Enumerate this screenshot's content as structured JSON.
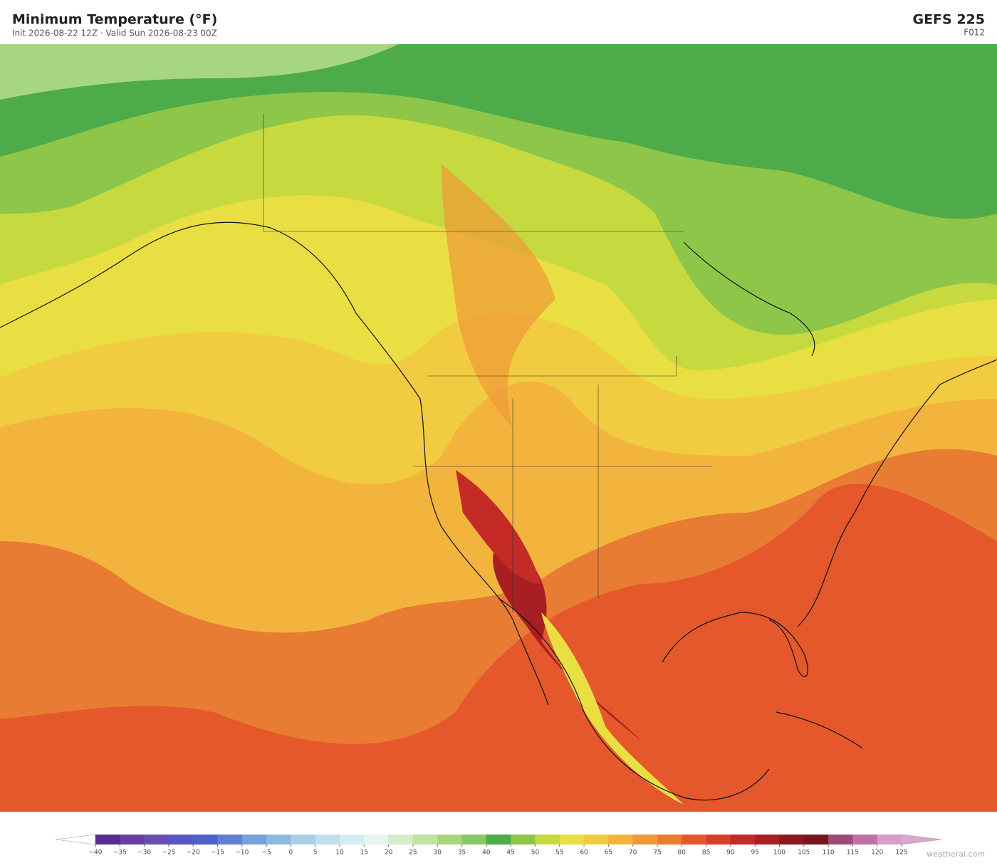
{
  "header": {
    "title": "Minimum Temperature  (°F)",
    "subtitle": "Init 2026-08-22 12Z  ·  Valid Sun 2026-08-23 00Z",
    "model": "GEFS  225",
    "forecast_hour": "F012"
  },
  "colorbar": {
    "ticks": [
      {
        "value": -40,
        "label": "−40"
      },
      {
        "value": -35,
        "label": "−35"
      },
      {
        "value": -30,
        "label": "−30"
      },
      {
        "value": -25,
        "label": "−25"
      },
      {
        "value": -20,
        "label": "−20"
      },
      {
        "value": -15,
        "label": "−15"
      },
      {
        "value": -10,
        "label": "−10"
      },
      {
        "value": -5,
        "label": "−5"
      },
      0,
      5,
      10,
      15,
      20,
      25,
      30,
      35,
      40,
      45,
      50,
      55,
      60,
      65,
      70,
      75,
      80,
      85,
      90,
      95,
      100,
      105,
      110,
      115,
      120,
      125
    ],
    "colors": [
      "#5a2d91",
      "#6a3ea0",
      "#6b4fb0",
      "#5a55c4",
      "#4e62cc",
      "#5f80d0",
      "#79a0d8",
      "#8fb8e0",
      "#a8cfe8",
      "#bfe0ef",
      "#d6ecf3",
      "#e8f4ec",
      "#d8eccc",
      "#c2e2a0",
      "#a6d67f",
      "#86c965",
      "#4eab4a",
      "#8dc648",
      "#c6d93e",
      "#eadf42",
      "#f2cc40",
      "#f3b43e",
      "#ef9838",
      "#e87c33",
      "#e4582c",
      "#d83d29",
      "#c42a26",
      "#a81e22",
      "#8c161d",
      "#78141e",
      "#9c4a78",
      "#c070a8",
      "#d79cc9"
    ],
    "under_color": "#ffffff",
    "over_color": "#dba6d0"
  },
  "footer": {
    "credit": "weatherai.com"
  }
}
